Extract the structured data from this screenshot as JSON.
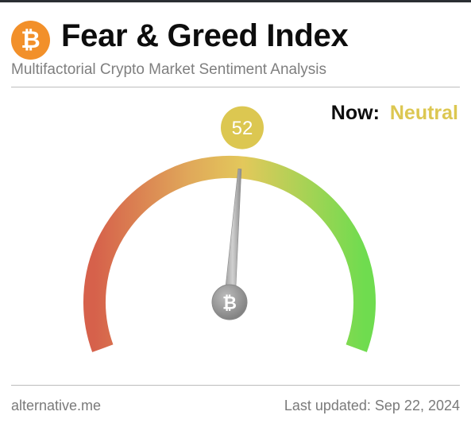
{
  "header": {
    "logo_symbol": "₿",
    "title": "Fear & Greed Index",
    "subtitle": "Multifactorial Crypto Market Sentiment Analysis"
  },
  "status": {
    "now_label": "Now:",
    "now_value": "Neutral",
    "now_color": "#dcc751"
  },
  "gauge": {
    "value": 52,
    "min": 0,
    "max": 100,
    "value_label": "52",
    "badge_color": "#dcc751",
    "center_icon": "bitcoin-icon",
    "center_symbol": "₿",
    "colors": {
      "fear": "#d6614b",
      "mid": "#e3c85b",
      "greed": "#6fdc4f"
    }
  },
  "footer": {
    "source": "alternative.me",
    "last_updated": "Last updated: Sep 22, 2024"
  }
}
